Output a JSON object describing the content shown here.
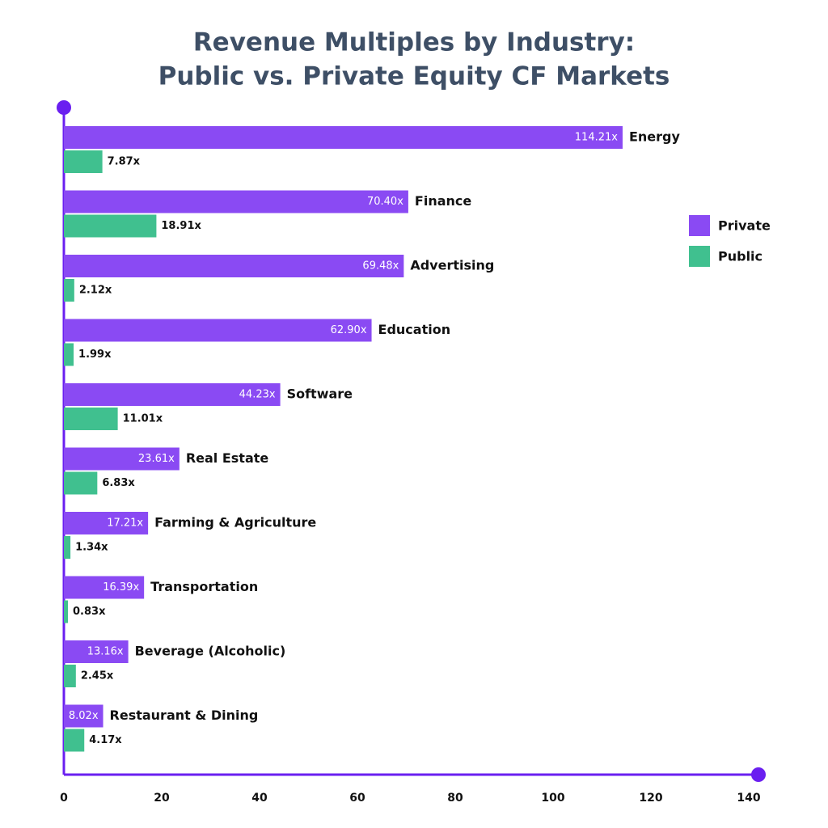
{
  "chart_data": {
    "type": "bar",
    "orientation": "horizontal",
    "title": [
      "Revenue Multiples by Industry:",
      "Public vs. Private Equity CF Markets"
    ],
    "categories": [
      "Energy",
      "Finance",
      "Advertising",
      "Education",
      "Software",
      "Real Estate",
      "Farming & Agriculture",
      "Transportation",
      "Beverage (Alcoholic)",
      "Restaurant & Dining"
    ],
    "series": [
      {
        "name": "Private",
        "color": "#8a4af3",
        "values": [
          114.21,
          70.4,
          69.48,
          62.9,
          44.23,
          23.61,
          17.21,
          16.39,
          13.16,
          8.02
        ],
        "value_labels": [
          "114.21x",
          "70.40x",
          "69.48x",
          "62.90x",
          "44.23x",
          "23.61x",
          "17.21x",
          "16.39x",
          "13.16x",
          "8.02x"
        ]
      },
      {
        "name": "Public",
        "color": "#40c08f",
        "values": [
          7.87,
          18.91,
          2.12,
          1.99,
          11.01,
          6.83,
          1.34,
          0.83,
          2.45,
          4.17
        ],
        "value_labels": [
          "7.87x",
          "18.91x",
          "2.12x",
          "1.99x",
          "11.01x",
          "6.83x",
          "1.34x",
          "0.83x",
          "2.45x",
          "4.17x"
        ]
      }
    ],
    "xlim": [
      0,
      140
    ],
    "xticks": [
      0,
      20,
      40,
      60,
      80,
      100,
      120,
      140
    ],
    "legend": "right",
    "axis_color": "#6a1ff0"
  }
}
